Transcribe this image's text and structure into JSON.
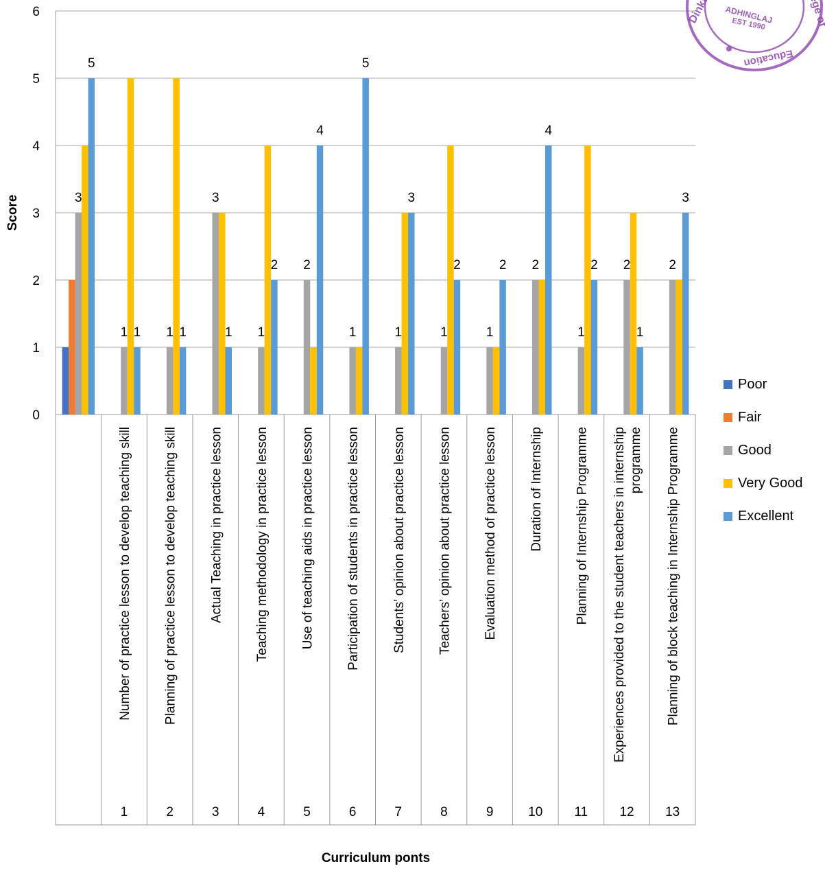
{
  "chart_data": {
    "type": "bar",
    "xlabel": "Curriculum ponts",
    "ylabel": "Score",
    "ylim": [
      0,
      6
    ],
    "yticks": [
      "0",
      "1",
      "2",
      "3",
      "4",
      "5",
      "6"
    ],
    "grid": true,
    "legend_position": "right",
    "categories": [
      {
        "num": "",
        "label": ""
      },
      {
        "num": "1",
        "label": "Number of practice lesson to develop teaching skill"
      },
      {
        "num": "2",
        "label": "Planning of practice lesson to develop teaching skill"
      },
      {
        "num": "3",
        "label": "Actual Teaching in practice lesson"
      },
      {
        "num": "4",
        "label": "Teaching methodology in practice lesson"
      },
      {
        "num": "5",
        "label": "Use of teaching aids in practice lesson"
      },
      {
        "num": "6",
        "label": "Participation of students in practice lesson"
      },
      {
        "num": "7",
        "label": "Students’ opinion about practice lesson"
      },
      {
        "num": "8",
        "label": "Teachers’ opinion about practice lesson"
      },
      {
        "num": "9",
        "label": "Evaluation method of practice lesson"
      },
      {
        "num": "10",
        "label": "Duration of Internship"
      },
      {
        "num": "11",
        "label": "Planning of Internship Programme"
      },
      {
        "num": "12",
        "label": "Experiences provided to the student teachers in internship programme"
      },
      {
        "num": "13",
        "label": "Planning of block teaching in Internship Programme"
      }
    ],
    "series": [
      {
        "name": "Poor",
        "color": "#4472C4",
        "values": [
          1,
          null,
          null,
          null,
          null,
          null,
          null,
          null,
          null,
          null,
          null,
          null,
          null,
          null
        ]
      },
      {
        "name": "Fair",
        "color": "#ED7D31",
        "values": [
          2,
          null,
          null,
          null,
          null,
          null,
          null,
          null,
          null,
          null,
          null,
          null,
          null,
          null
        ]
      },
      {
        "name": "Good",
        "color": "#A5A5A5",
        "values": [
          3,
          1,
          1,
          3,
          1,
          2,
          1,
          1,
          1,
          1,
          2,
          1,
          2,
          2
        ]
      },
      {
        "name": "Very Good",
        "color": "#FFC000",
        "values": [
          4,
          5,
          5,
          3,
          4,
          1,
          1,
          3,
          4,
          1,
          2,
          4,
          3,
          2
        ]
      },
      {
        "name": "Excellent",
        "color": "#5B9BD5",
        "values": [
          5,
          1,
          1,
          1,
          2,
          4,
          5,
          3,
          2,
          2,
          4,
          2,
          1,
          3
        ]
      }
    ],
    "data_labels": [
      {
        "category": 0,
        "series": "Good",
        "text": "3"
      },
      {
        "category": 0,
        "series": "Excellent",
        "text": "5"
      },
      {
        "category": 1,
        "series": "Good",
        "text": "1"
      },
      {
        "category": 1,
        "series": "Excellent",
        "text": "1"
      },
      {
        "category": 2,
        "series": "Good",
        "text": "1"
      },
      {
        "category": 2,
        "series": "Excellent",
        "text": "1"
      },
      {
        "category": 3,
        "series": "Good",
        "text": "3"
      },
      {
        "category": 3,
        "series": "Excellent",
        "text": "1"
      },
      {
        "category": 4,
        "series": "Good",
        "text": "1"
      },
      {
        "category": 4,
        "series": "Excellent",
        "text": "2"
      },
      {
        "category": 5,
        "series": "Good",
        "text": "2"
      },
      {
        "category": 5,
        "series": "Excellent",
        "text": "4"
      },
      {
        "category": 6,
        "series": "Good",
        "text": "1"
      },
      {
        "category": 6,
        "series": "Excellent",
        "text": "5"
      },
      {
        "category": 7,
        "series": "Good",
        "text": "1"
      },
      {
        "category": 7,
        "series": "Excellent",
        "text": "3"
      },
      {
        "category": 8,
        "series": "Good",
        "text": "1"
      },
      {
        "category": 8,
        "series": "Excellent",
        "text": "2"
      },
      {
        "category": 9,
        "series": "Good",
        "text": "1"
      },
      {
        "category": 9,
        "series": "Excellent",
        "text": "2"
      },
      {
        "category": 10,
        "series": "Good",
        "text": "2"
      },
      {
        "category": 10,
        "series": "Excellent",
        "text": "4"
      },
      {
        "category": 11,
        "series": "Good",
        "text": "1"
      },
      {
        "category": 11,
        "series": "Excellent",
        "text": "2"
      },
      {
        "category": 12,
        "series": "Good",
        "text": "2"
      },
      {
        "category": 12,
        "series": "Excellent",
        "text": "1"
      },
      {
        "category": 13,
        "series": "Good",
        "text": "2"
      },
      {
        "category": 13,
        "series": "Excellent",
        "text": "3"
      }
    ]
  },
  "stamp": {
    "lines": [
      "Dinkar",
      "ADHINGLAJ",
      "EST 1990",
      "ege of",
      "Education"
    ],
    "color": "#8E44AD"
  }
}
